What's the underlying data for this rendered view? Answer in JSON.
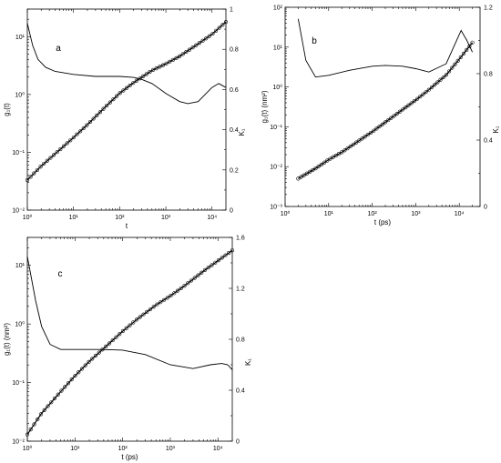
{
  "chart_data": [
    {
      "type": "scatter",
      "panel_label": "a",
      "xlabel": "t",
      "ylabel": "g₁(t)",
      "y2label": "K₁",
      "xscale": "log",
      "yscale": "log",
      "xlim": [
        1,
        20000
      ],
      "ylim": [
        0.01,
        30
      ],
      "y2lim": [
        0,
        1
      ],
      "xticks": [
        1,
        10,
        100,
        1000,
        10000
      ],
      "xtick_labels": [
        "10⁰",
        "10¹",
        "10²",
        "10³",
        "10⁴"
      ],
      "yticks": [
        0.01,
        0.1,
        1,
        10
      ],
      "ytick_labels": [
        "10⁻²",
        "10⁻¹",
        "10⁰",
        "10¹"
      ],
      "y2ticks": [
        0,
        0.2,
        0.4,
        0.6,
        0.8,
        1
      ],
      "y2tick_labels": [
        "0",
        "0.2",
        "0.4",
        "0.6",
        "0.8",
        "1"
      ],
      "series": [
        {
          "style": "line+open-circles",
          "axis": "left",
          "x": [
            1,
            2,
            5,
            10,
            20,
            50,
            100,
            200,
            500,
            1000,
            2000,
            5000,
            10000,
            20000
          ],
          "y": [
            0.033,
            0.058,
            0.11,
            0.18,
            0.3,
            0.62,
            1.05,
            1.6,
            2.6,
            3.4,
            4.6,
            7.5,
            11,
            18
          ]
        },
        {
          "style": "line",
          "axis": "right",
          "x": [
            1,
            1.3,
            1.7,
            2.5,
            4,
            10,
            30,
            100,
            200,
            300,
            500,
            1000,
            2000,
            3000,
            5000,
            10000,
            14000,
            20000
          ],
          "y": [
            0.93,
            0.82,
            0.75,
            0.71,
            0.69,
            0.675,
            0.665,
            0.665,
            0.66,
            0.65,
            0.63,
            0.58,
            0.54,
            0.53,
            0.54,
            0.61,
            0.63,
            0.61
          ]
        }
      ]
    },
    {
      "type": "scatter",
      "panel_label": "b",
      "xlabel": "t (ps)",
      "ylabel": "g₁(t) (nm²)",
      "y2label": "K₁",
      "xscale": "log",
      "yscale": "log",
      "xlim": [
        1,
        30000
      ],
      "ylim": [
        0.001,
        100
      ],
      "y2lim": [
        0,
        1.2
      ],
      "xticks": [
        1,
        10,
        100,
        1000,
        10000
      ],
      "xtick_labels": [
        "10⁰",
        "10¹",
        "10²",
        "10³",
        "10⁴"
      ],
      "yticks": [
        0.001,
        0.01,
        0.1,
        1,
        10,
        100
      ],
      "ytick_labels": [
        "10⁻³",
        "10⁻²",
        "10⁻¹",
        "10⁰",
        "10¹",
        "10²"
      ],
      "y2ticks": [
        0,
        0.4,
        0.8,
        1.2
      ],
      "y2tick_labels": [
        "0",
        "0.4",
        "0.8",
        "1.2"
      ],
      "series": [
        {
          "style": "line+open-circles",
          "axis": "left",
          "x": [
            2,
            5,
            10,
            20,
            50,
            100,
            200,
            500,
            1000,
            2000,
            5000,
            10000,
            20000
          ],
          "y": [
            0.005,
            0.009,
            0.015,
            0.023,
            0.045,
            0.075,
            0.13,
            0.27,
            0.47,
            0.85,
            2.0,
            5.0,
            13
          ]
        },
        {
          "style": "line",
          "axis": "right",
          "x": [
            2,
            3,
            5,
            10,
            30,
            100,
            200,
            500,
            1000,
            2000,
            5000,
            8000,
            11000,
            15000,
            20000
          ],
          "y": [
            1.13,
            0.88,
            0.78,
            0.79,
            0.82,
            0.845,
            0.85,
            0.845,
            0.83,
            0.81,
            0.86,
            0.98,
            1.06,
            1.0,
            0.93
          ]
        }
      ]
    },
    {
      "type": "scatter",
      "panel_label": "c",
      "xlabel": "t (ps)",
      "ylabel": "g₁(t) (nm²)",
      "y2label": "K₁",
      "xscale": "log",
      "yscale": "log",
      "xlim": [
        1,
        20000
      ],
      "ylim": [
        0.01,
        30
      ],
      "y2lim": [
        0,
        1.6
      ],
      "xticks": [
        1,
        10,
        100,
        1000,
        10000
      ],
      "xtick_labels": [
        "10⁰",
        "10¹",
        "10²",
        "10³",
        "10⁴"
      ],
      "yticks": [
        0.01,
        0.1,
        1,
        10
      ],
      "ytick_labels": [
        "10⁻²",
        "10⁻¹",
        "10⁰",
        "10¹"
      ],
      "y2ticks": [
        0,
        0.4,
        0.8,
        1.2,
        1.6
      ],
      "y2tick_labels": [
        "0",
        "0.4",
        "0.8",
        "1.2",
        "1.6"
      ],
      "series": [
        {
          "style": "line+open-circles",
          "axis": "left",
          "x": [
            1,
            2,
            5,
            10,
            20,
            50,
            100,
            200,
            500,
            1000,
            2000,
            5000,
            10000,
            20000
          ],
          "y": [
            0.013,
            0.03,
            0.07,
            0.13,
            0.23,
            0.45,
            0.75,
            1.2,
            2.1,
            3.0,
            4.5,
            8.0,
            12,
            18
          ]
        },
        {
          "style": "line",
          "axis": "right",
          "x": [
            1,
            1.5,
            2,
            3,
            5,
            10,
            30,
            100,
            300,
            1000,
            3000,
            7000,
            12000,
            16000,
            20000
          ],
          "y": [
            1.45,
            1.1,
            0.9,
            0.76,
            0.72,
            0.72,
            0.72,
            0.715,
            0.68,
            0.6,
            0.57,
            0.6,
            0.61,
            0.6,
            0.56
          ]
        }
      ]
    }
  ]
}
